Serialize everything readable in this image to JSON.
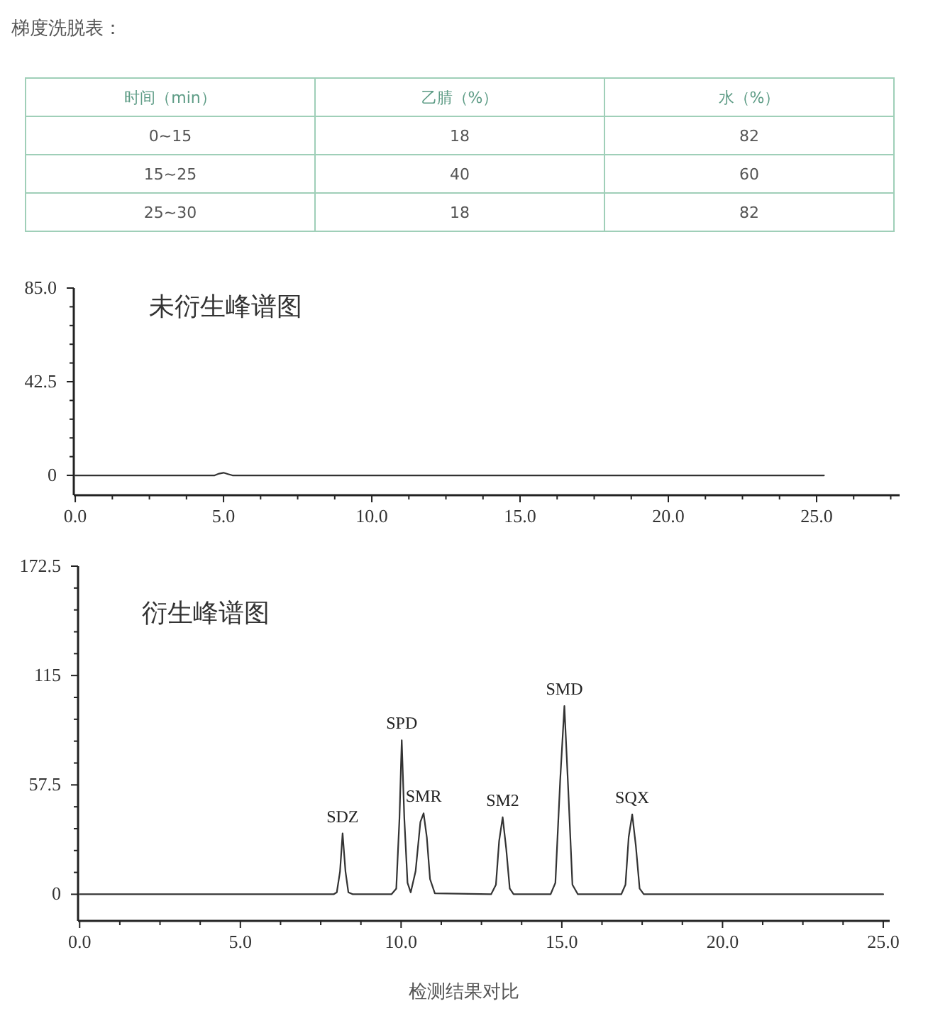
{
  "chart_data": [
    {
      "type": "other",
      "title": "梯度洗脱表：",
      "categories": [
        "时间（min）",
        "乙腈（%）",
        "水（%）"
      ],
      "annotations": [
        "0~15",
        "18",
        "82",
        "15~25",
        "40",
        "60",
        "25~30",
        "18",
        "82"
      ]
    },
    {
      "type": "line",
      "title": "未衍生峰谱图",
      "xlim": [
        -0.05,
        27.8
      ],
      "ylim": [
        -9,
        85
      ],
      "xticks": [
        {
          "value": 0,
          "label": "0.0"
        },
        {
          "value": 1.25,
          "label": null
        },
        {
          "value": 2.5,
          "label": null
        },
        {
          "value": 3.75,
          "label": null
        },
        {
          "value": 5,
          "label": "5.0"
        },
        {
          "value": 6.25,
          "label": null
        },
        {
          "value": 7.5,
          "label": null
        },
        {
          "value": 8.75,
          "label": null
        },
        {
          "value": 10,
          "label": "10.0"
        },
        {
          "value": 11.25,
          "label": null
        },
        {
          "value": 12.5,
          "label": null
        },
        {
          "value": 13.75,
          "label": null
        },
        {
          "value": 15,
          "label": "15.0"
        },
        {
          "value": 16.25,
          "label": null
        },
        {
          "value": 17.5,
          "label": null
        },
        {
          "value": 18.75,
          "label": null
        },
        {
          "value": 20,
          "label": "20.0"
        },
        {
          "value": 21.25,
          "label": null
        },
        {
          "value": 22.5,
          "label": null
        },
        {
          "value": 23.75,
          "label": null
        },
        {
          "value": 25,
          "label": "25.0"
        },
        {
          "value": 26.25,
          "label": null
        },
        {
          "value": 27.5,
          "label": null
        }
      ],
      "yticks": [
        {
          "value": 0,
          "label": "0"
        },
        {
          "value": 8.5,
          "label": null
        },
        {
          "value": 17,
          "label": null
        },
        {
          "value": 25.5,
          "label": null
        },
        {
          "value": 34,
          "label": null
        },
        {
          "value": 42.5,
          "label": "42.5"
        },
        {
          "value": 51,
          "label": null
        },
        {
          "value": 59.5,
          "label": null
        },
        {
          "value": 68,
          "label": null
        },
        {
          "value": 76.5,
          "label": null
        },
        {
          "value": 85,
          "label": "85.0"
        }
      ],
      "series": [
        {
          "color": "#333333",
          "x": [
            0,
            4.7,
            4.85,
            5.0,
            5.15,
            5.3,
            25.25
          ],
          "values": [
            0,
            0,
            0.8,
            1.2,
            0.6,
            0,
            0
          ]
        }
      ]
    },
    {
      "type": "line",
      "title": "衍生峰谱图",
      "xlim": [
        -0.05,
        25.2
      ],
      "ylim": [
        -14,
        172.5
      ],
      "xticks": [
        {
          "value": 0,
          "label": "0.0"
        },
        {
          "value": 1.25,
          "label": null
        },
        {
          "value": 2.5,
          "label": null
        },
        {
          "value": 3.75,
          "label": null
        },
        {
          "value": 5,
          "label": "5.0"
        },
        {
          "value": 6.25,
          "label": null
        },
        {
          "value": 7.5,
          "label": null
        },
        {
          "value": 8.75,
          "label": null
        },
        {
          "value": 10,
          "label": "10.0"
        },
        {
          "value": 11.25,
          "label": null
        },
        {
          "value": 12.5,
          "label": null
        },
        {
          "value": 13.75,
          "label": null
        },
        {
          "value": 15,
          "label": "15.0"
        },
        {
          "value": 16.25,
          "label": null
        },
        {
          "value": 17.5,
          "label": null
        },
        {
          "value": 18.75,
          "label": null
        },
        {
          "value": 20,
          "label": "20.0"
        },
        {
          "value": 21.25,
          "label": null
        },
        {
          "value": 22.5,
          "label": null
        },
        {
          "value": 23.75,
          "label": null
        },
        {
          "value": 25,
          "label": "25.0"
        }
      ],
      "yticks": [
        {
          "value": 0,
          "label": "0"
        },
        {
          "value": 11.5,
          "label": null
        },
        {
          "value": 23,
          "label": null
        },
        {
          "value": 34.5,
          "label": null
        },
        {
          "value": 46,
          "label": null
        },
        {
          "value": 57.5,
          "label": "57.5"
        },
        {
          "value": 69,
          "label": null
        },
        {
          "value": 80.5,
          "label": null
        },
        {
          "value": 92,
          "label": null
        },
        {
          "value": 103.5,
          "label": null
        },
        {
          "value": 115,
          "label": "115"
        },
        {
          "value": 126.5,
          "label": null
        },
        {
          "value": 138,
          "label": null
        },
        {
          "value": 149.5,
          "label": null
        },
        {
          "value": 161,
          "label": null
        },
        {
          "value": 172.5,
          "label": "172.5"
        }
      ],
      "series": [
        {
          "color": "#333333",
          "x": [
            0,
            7.9,
            8.0,
            8.1,
            8.18,
            8.27,
            8.36,
            8.5,
            9.7,
            9.85,
            9.95,
            10.02,
            10.1,
            10.2,
            10.3,
            10.45,
            10.6,
            10.7,
            10.8,
            10.9,
            11.05,
            12.8,
            12.95,
            13.05,
            13.16,
            13.27,
            13.38,
            13.5,
            14.65,
            14.8,
            14.95,
            15.08,
            15.2,
            15.33,
            15.5,
            16.85,
            16.98,
            17.08,
            17.19,
            17.3,
            17.42,
            17.55,
            25
          ],
          "values": [
            0,
            0,
            1,
            12,
            32,
            12,
            1,
            0,
            0,
            3,
            40,
            81,
            40,
            6,
            1,
            12,
            38,
            42.6,
            30,
            8,
            0.5,
            0,
            5,
            28,
            40.5,
            24,
            3,
            0,
            0,
            6,
            60,
            99,
            55,
            5,
            0,
            0,
            5,
            30,
            42,
            26,
            3,
            0,
            0
          ]
        }
      ],
      "annotations": [
        {
          "text": "SDZ",
          "x": 8.18,
          "y": 32
        },
        {
          "text": "SPD",
          "x": 10.02,
          "y": 81
        },
        {
          "text": "SMR",
          "x": 10.7,
          "y": 42.6
        },
        {
          "text": "SM2",
          "x": 13.16,
          "y": 40.5
        },
        {
          "text": "SMD",
          "x": 15.08,
          "y": 99
        },
        {
          "text": "SQX",
          "x": 17.19,
          "y": 42
        },
        "检测结果对比"
      ]
    }
  ]
}
